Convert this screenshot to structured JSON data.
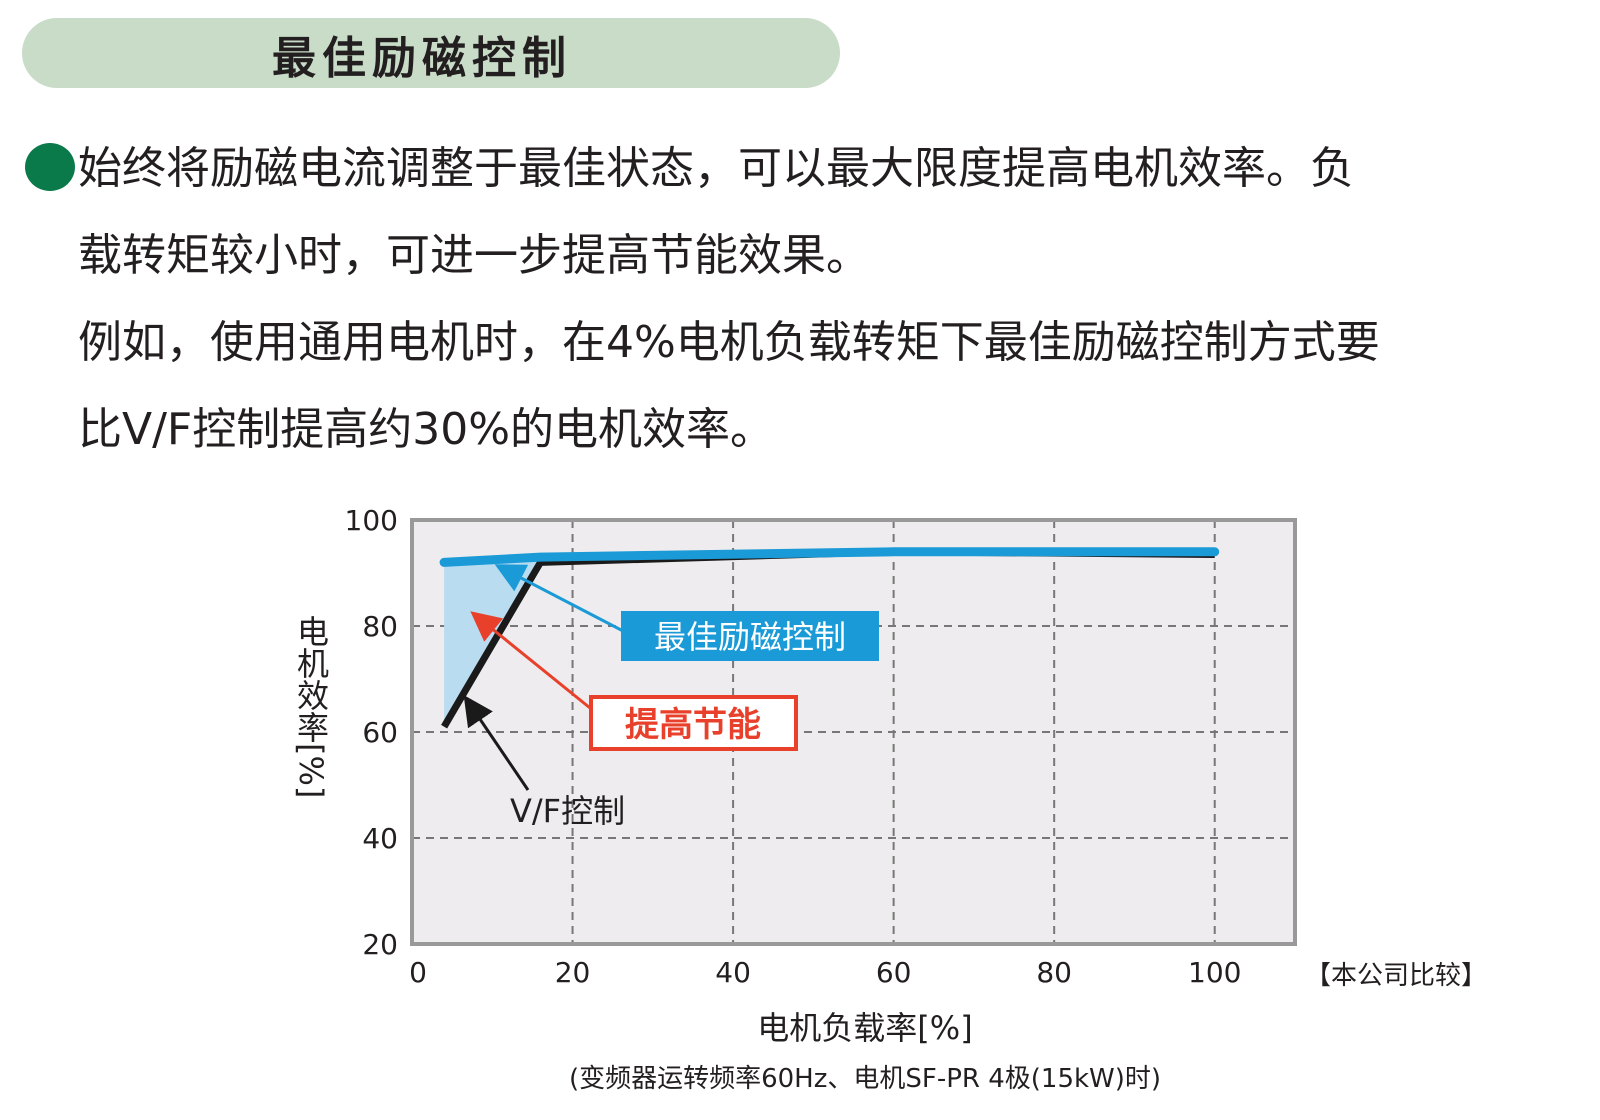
{
  "header": {
    "title": "最佳励磁控制"
  },
  "body": {
    "lines": [
      "始终将励磁电流调整于最佳状态，可以最大限度提高电机效率。负",
      "载转矩较小时，可进一步提高节能效果。",
      "例如，使用通用电机时，在4%电机负载转矩下最佳励磁控制方式要",
      "比V/F控制提高约30%的电机效率。"
    ]
  },
  "colors": {
    "header_bg": "#c8dcc8",
    "bullet": "#0b7a4a",
    "optimal": "#1a9ad6",
    "vf": "#1a1a1a",
    "saving": "#e8402a",
    "fill": "#b9dcf0",
    "plot_bg": "#eeecee"
  },
  "chart_data": {
    "type": "line",
    "xlabel": "电机负载率[%]",
    "ylabel": "电机效率[%]",
    "xlim": [
      0,
      110
    ],
    "ylim": [
      20,
      100
    ],
    "xticks": [
      0,
      20,
      40,
      60,
      80,
      100
    ],
    "yticks": [
      20,
      40,
      60,
      80,
      100
    ],
    "grid": true,
    "series": [
      {
        "name": "最佳励磁控制",
        "x": [
          4,
          16,
          60,
          100
        ],
        "y": [
          92,
          93,
          94,
          94
        ]
      },
      {
        "name": "V/F控制",
        "x": [
          4,
          16,
          60,
          100
        ],
        "y": [
          61,
          92,
          94,
          93.5
        ]
      }
    ],
    "annotations": {
      "saving": "提高节能",
      "company": "【本公司比较】",
      "note": "(变频器运转频率60Hz、电机SF-PR 4极(15kW)时)"
    }
  }
}
